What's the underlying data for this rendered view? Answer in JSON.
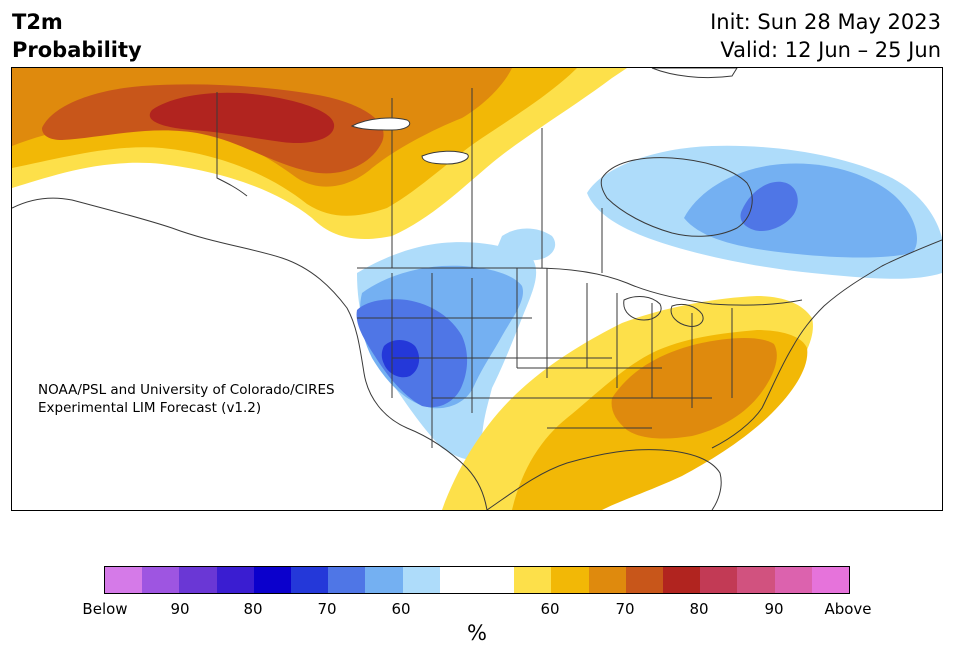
{
  "header": {
    "title_line1": "T2m",
    "title_line2": "Probability",
    "init": "Init: Sun 28 May 2023",
    "valid": "Valid: 12 Jun – 25 Jun"
  },
  "map": {
    "credit_line1": "NOAA/PSL and University of Colorado/CIRES",
    "credit_line2": "Experimental LIM Forecast (v1.2)"
  },
  "colorbar": {
    "unit": "%",
    "colors": [
      "#d57ae8",
      "#9e55e1",
      "#6a37d5",
      "#3a1dd1",
      "#0b00cc",
      "#2438d9",
      "#4f76e6",
      "#74b0f2",
      "#aedcfa",
      "#ffffff",
      "#ffffff",
      "#fde04a",
      "#f2b806",
      "#df8a0d",
      "#c8561a",
      "#b1241f",
      "#c23a55",
      "#d1527f",
      "#dc62ae",
      "#e673db"
    ],
    "ticks": [
      "Below",
      "90",
      "80",
      "70",
      "60",
      "60",
      "70",
      "80",
      "90",
      "Above"
    ]
  }
}
